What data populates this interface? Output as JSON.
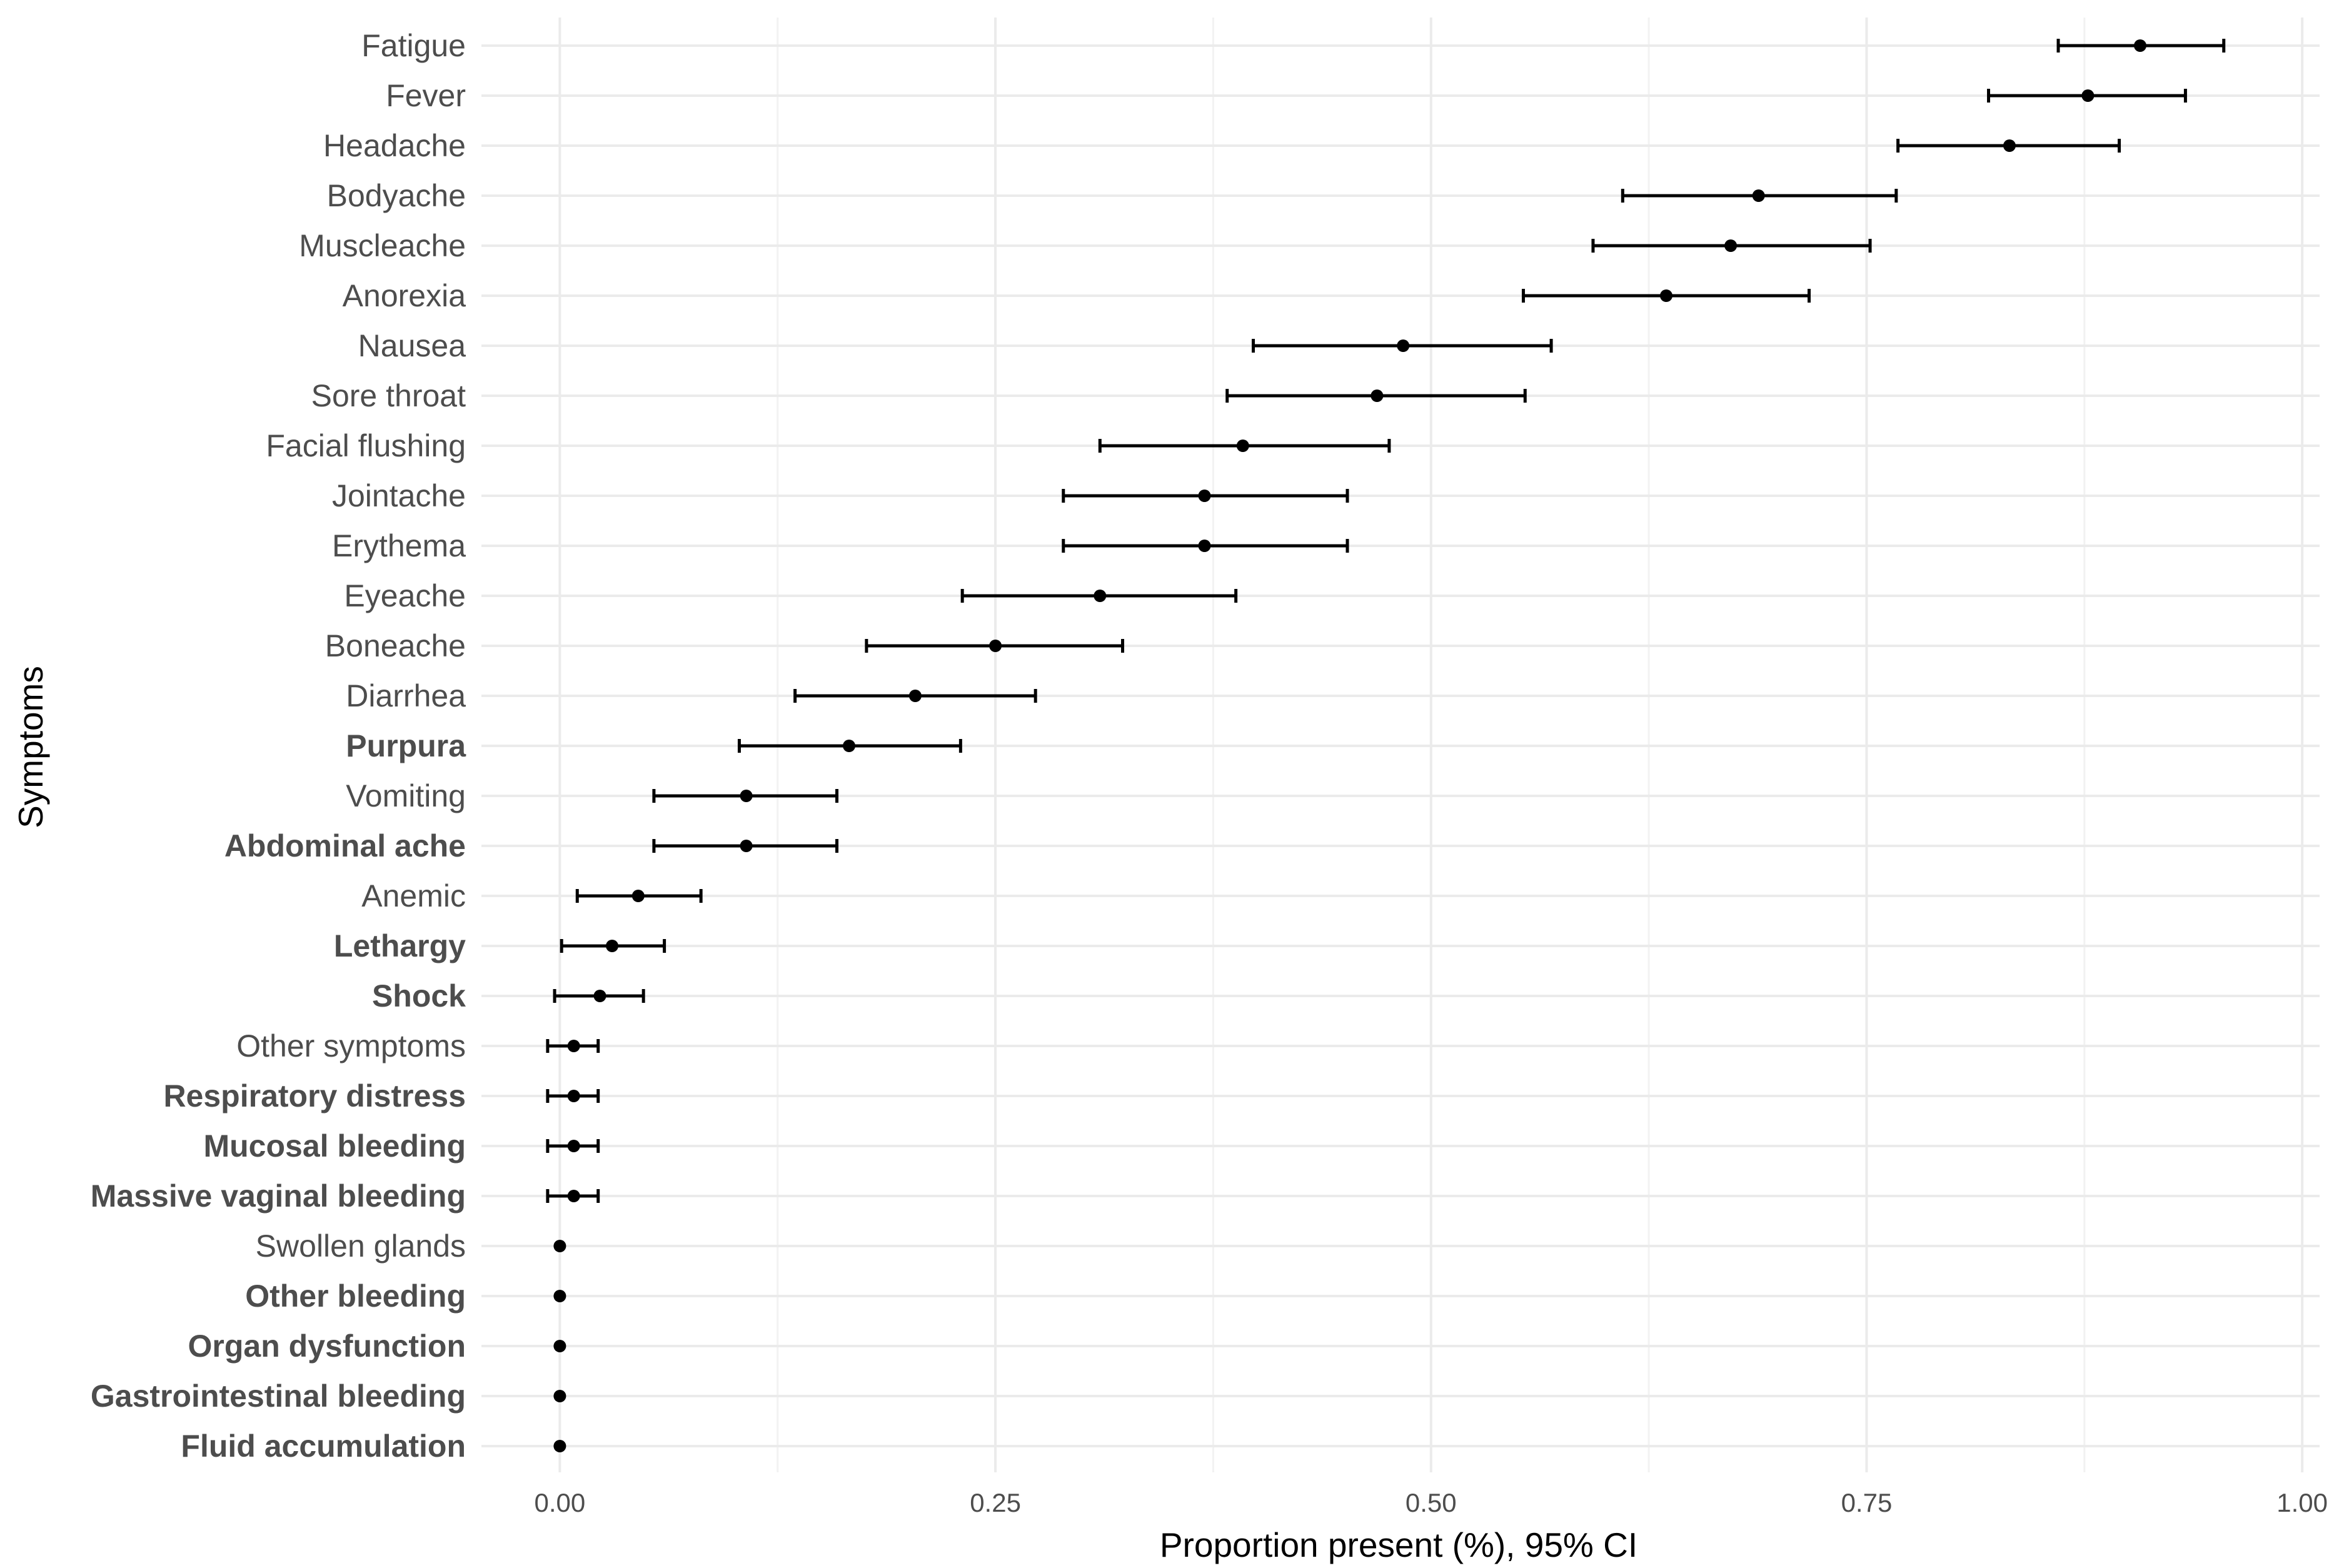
{
  "chart_data": {
    "type": "scatter",
    "subtype": "point-range",
    "title": "",
    "xlabel": "Proportion present (%), 95% CI",
    "ylabel": "Symptoms",
    "xlim": [
      -0.045,
      1.01
    ],
    "xticks": [
      0.0,
      0.25,
      0.5,
      0.75,
      1.0
    ],
    "xtick_labels": [
      "0.00",
      "0.25",
      "0.50",
      "0.75",
      "1.00"
    ],
    "grid": true,
    "legend": "none",
    "series": [
      {
        "name": "Proportion present",
        "points": [
          {
            "label": "Fatigue",
            "value": 0.907,
            "lower": 0.86,
            "upper": 0.955,
            "bold": false
          },
          {
            "label": "Fever",
            "value": 0.877,
            "lower": 0.82,
            "upper": 0.933,
            "bold": false
          },
          {
            "label": "Headache",
            "value": 0.832,
            "lower": 0.768,
            "upper": 0.895,
            "bold": false
          },
          {
            "label": "Bodyache",
            "value": 0.688,
            "lower": 0.61,
            "upper": 0.767,
            "bold": false
          },
          {
            "label": "Muscleache",
            "value": 0.672,
            "lower": 0.593,
            "upper": 0.752,
            "bold": false
          },
          {
            "label": "Anorexia",
            "value": 0.635,
            "lower": 0.553,
            "upper": 0.717,
            "bold": false
          },
          {
            "label": "Nausea",
            "value": 0.484,
            "lower": 0.398,
            "upper": 0.569,
            "bold": false
          },
          {
            "label": "Sore throat",
            "value": 0.469,
            "lower": 0.383,
            "upper": 0.554,
            "bold": false
          },
          {
            "label": "Facial flushing",
            "value": 0.392,
            "lower": 0.31,
            "upper": 0.476,
            "bold": false
          },
          {
            "label": "Jointache",
            "value": 0.37,
            "lower": 0.289,
            "upper": 0.452,
            "bold": false
          },
          {
            "label": "Erythema",
            "value": 0.37,
            "lower": 0.289,
            "upper": 0.452,
            "bold": false
          },
          {
            "label": "Eyeache",
            "value": 0.31,
            "lower": 0.231,
            "upper": 0.388,
            "bold": false
          },
          {
            "label": "Boneache",
            "value": 0.25,
            "lower": 0.176,
            "upper": 0.323,
            "bold": false
          },
          {
            "label": "Diarrhea",
            "value": 0.204,
            "lower": 0.135,
            "upper": 0.273,
            "bold": false
          },
          {
            "label": "Purpura",
            "value": 0.166,
            "lower": 0.103,
            "upper": 0.23,
            "bold": true
          },
          {
            "label": "Vomiting",
            "value": 0.107,
            "lower": 0.054,
            "upper": 0.159,
            "bold": false
          },
          {
            "label": "Abdominal ache",
            "value": 0.107,
            "lower": 0.054,
            "upper": 0.159,
            "bold": true
          },
          {
            "label": "Anemic",
            "value": 0.045,
            "lower": 0.01,
            "upper": 0.081,
            "bold": false
          },
          {
            "label": "Lethargy",
            "value": 0.03,
            "lower": 0.001,
            "upper": 0.06,
            "bold": true
          },
          {
            "label": "Shock",
            "value": 0.023,
            "lower": -0.003,
            "upper": 0.048,
            "bold": true
          },
          {
            "label": "Other symptoms",
            "value": 0.008,
            "lower": -0.007,
            "upper": 0.022,
            "bold": false
          },
          {
            "label": "Respiratory distress",
            "value": 0.008,
            "lower": -0.007,
            "upper": 0.022,
            "bold": true
          },
          {
            "label": "Mucosal bleeding",
            "value": 0.008,
            "lower": -0.007,
            "upper": 0.022,
            "bold": true
          },
          {
            "label": "Massive vaginal bleeding",
            "value": 0.008,
            "lower": -0.007,
            "upper": 0.022,
            "bold": true
          },
          {
            "label": "Swollen glands",
            "value": 0.0,
            "lower": 0.0,
            "upper": 0.0,
            "bold": false
          },
          {
            "label": "Other bleeding",
            "value": 0.0,
            "lower": 0.0,
            "upper": 0.0,
            "bold": true
          },
          {
            "label": "Organ dysfunction",
            "value": 0.0,
            "lower": 0.0,
            "upper": 0.0,
            "bold": true
          },
          {
            "label": "Gastrointestinal bleeding",
            "value": 0.0,
            "lower": 0.0,
            "upper": 0.0,
            "bold": true
          },
          {
            "label": "Fluid accumulation",
            "value": 0.0,
            "lower": 0.0,
            "upper": 0.0,
            "bold": true
          }
        ]
      }
    ]
  }
}
